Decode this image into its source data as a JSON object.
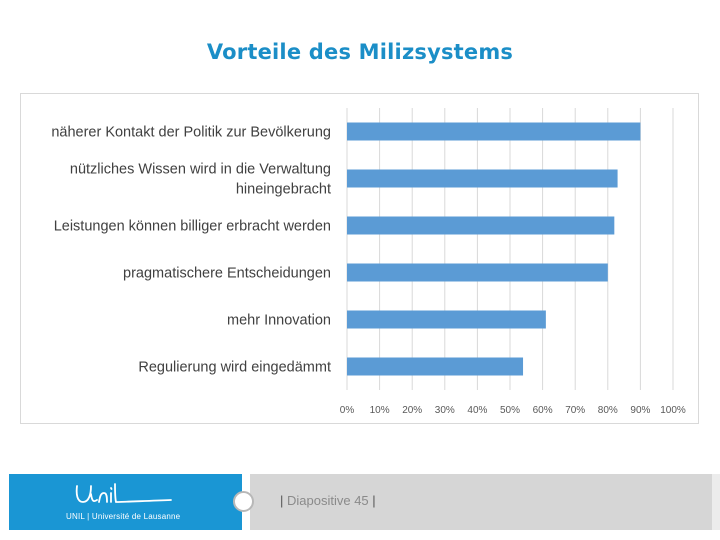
{
  "slide": {
    "title": "Vorteile des Milizsystems",
    "slide_label": "Diapositive 45",
    "logo_script": "Unil",
    "logo_text": "UNIL | Université de Lausanne"
  },
  "colors": {
    "title": "#1b8ec7",
    "bar": "#5b9bd5",
    "footer_blue": "#1a96d4",
    "footer_gray": "#d6d6d6"
  },
  "chart_data": {
    "type": "bar",
    "orientation": "horizontal",
    "title": "",
    "xlabel": "",
    "ylabel": "",
    "categories": [
      [
        "näherer Kontakt der Politik zur Bevölkerung"
      ],
      [
        "nützliches Wissen wird in die Verwaltung",
        "hineingebracht"
      ],
      [
        "Leistungen können billiger erbracht werden"
      ],
      [
        "pragmatischere Entscheidungen"
      ],
      [
        "mehr Innovation"
      ],
      [
        "Regulierung wird eingedämmt"
      ]
    ],
    "values": [
      90,
      83,
      82,
      80,
      61,
      54
    ],
    "unit": "%",
    "xlim": [
      0,
      100
    ],
    "ticks": [
      "0%",
      "10%",
      "20%",
      "30%",
      "40%",
      "50%",
      "60%",
      "70%",
      "80%",
      "90%",
      "100%"
    ],
    "grid": true,
    "legend": "none"
  }
}
